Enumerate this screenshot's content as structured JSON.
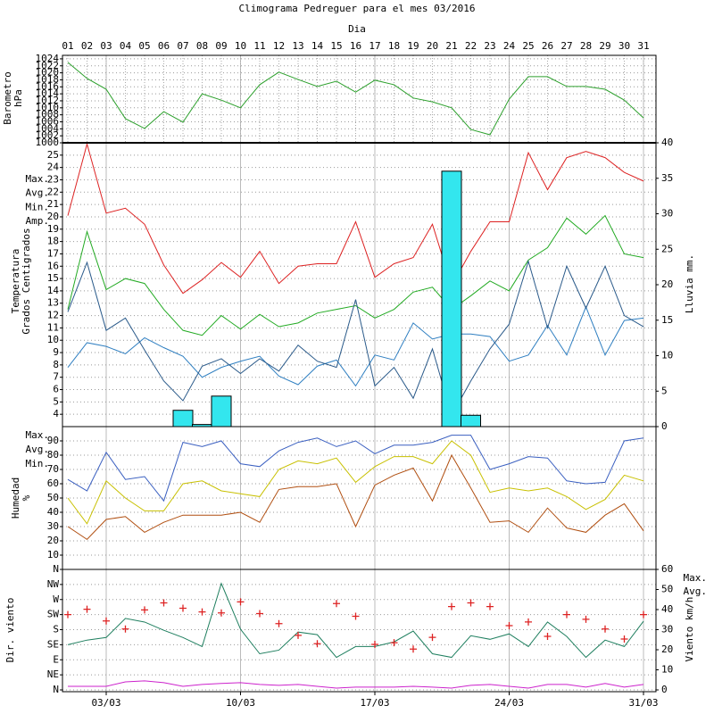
{
  "chart_data": [
    {
      "type": "line",
      "title": "Climograma Pedreguer para el mes 03/2016",
      "xlabel": "Dia",
      "ylabel": [
        "Barometro",
        "hPa"
      ],
      "ylabel_color": "#2ca02c",
      "categories": [
        "01",
        "02",
        "03",
        "04",
        "05",
        "06",
        "07",
        "08",
        "09",
        "10",
        "11",
        "12",
        "13",
        "14",
        "15",
        "16",
        "17",
        "18",
        "19",
        "20",
        "21",
        "22",
        "23",
        "24",
        "25",
        "26",
        "27",
        "28",
        "29",
        "30",
        "31"
      ],
      "ylim": [
        1000,
        1025
      ],
      "yticks": [
        1000,
        1002,
        1004,
        1006,
        1008,
        1010,
        1012,
        1014,
        1016,
        1018,
        1020,
        1022,
        1024
      ],
      "grid": true,
      "series": [
        {
          "color": "#2ca02c",
          "style": "line",
          "values": [
            1023,
            1018.4,
            1015.3,
            1006.9,
            1004.1,
            1008.9,
            1005.9,
            1014,
            1012.2,
            1010,
            1016.6,
            1020.2,
            1018.1,
            1016.1,
            1017.6,
            1014.5,
            1017.9,
            1016.6,
            1012.8,
            1011.7,
            1010,
            1003.8,
            1002.3,
            1012.5,
            1018.9,
            1018.9,
            1016.1,
            1016.1,
            1015.3,
            1012.2,
            1007.1
          ]
        }
      ]
    },
    {
      "type": "line",
      "ylabel": [
        "Temperatura",
        "Grados Centigrados"
      ],
      "ylabel_color": "#dd2222",
      "y2label": "Lluvia mm.",
      "y2label_color": "#22dddd",
      "legend": "left",
      "ylim": [
        3,
        26
      ],
      "yticks": [
        4,
        5,
        6,
        7,
        8,
        9,
        10,
        11,
        12,
        13,
        14,
        15,
        16,
        17,
        18,
        19,
        20,
        21,
        22,
        23,
        24,
        25
      ],
      "grid": true,
      "y2lim": [
        0,
        40
      ],
      "y2ticks": [
        0,
        5,
        10,
        15,
        20,
        25,
        30,
        35,
        40
      ],
      "series": [
        {
          "name": "Max.",
          "color": "#dd2222",
          "style": "line",
          "values": [
            20.1,
            25.9,
            20.3,
            20.7,
            19.4,
            16.1,
            13.8,
            14.9,
            16.3,
            15.1,
            17.2,
            14.6,
            16,
            16.2,
            16.2,
            19.6,
            15.1,
            16.2,
            16.7,
            19.4,
            14.4,
            17.2,
            19.6,
            19.6,
            25.2,
            22.2,
            24.8,
            25.3,
            24.8,
            23.6,
            22.9
          ]
        },
        {
          "name": "Avg.",
          "color": "#22aa22",
          "style": "line",
          "values": [
            12.5,
            18.8,
            14.1,
            15,
            14.6,
            12.5,
            10.8,
            10.4,
            12,
            10.9,
            12.1,
            11.1,
            11.4,
            12.2,
            12.5,
            12.8,
            11.8,
            12.5,
            13.9,
            14.3,
            12.5,
            13.6,
            14.8,
            14,
            16.5,
            17.5,
            19.9,
            18.6,
            20.1,
            17,
            16.7
          ]
        },
        {
          "name": "Min.",
          "color": "#2f7fc1",
          "style": "line",
          "values": [
            7.8,
            9.8,
            9.5,
            8.9,
            10.2,
            9.4,
            8.7,
            7,
            7.8,
            8.3,
            8.7,
            7.1,
            6.4,
            7.9,
            8.4,
            6.3,
            8.8,
            8.4,
            11.4,
            10.1,
            10.5,
            10.5,
            10.3,
            8.3,
            8.8,
            11.2,
            8.8,
            12.7,
            8.8,
            11.6,
            11.8
          ]
        },
        {
          "name": "Amp.",
          "color": "#2a5a8a",
          "style": "line",
          "values": [
            12.3,
            16.3,
            10.8,
            11.8,
            9.2,
            6.7,
            5.1,
            7.9,
            8.5,
            7.3,
            8.5,
            7.5,
            9.6,
            8.3,
            7.8,
            13.3,
            6.3,
            7.8,
            5.3,
            9.3,
            3.9,
            6.7,
            9.3,
            11.3,
            16.4,
            11,
            16,
            12.6,
            16,
            12,
            11.1
          ]
        },
        {
          "color": "#33e6ee",
          "style": "bar",
          "axis": "y2",
          "values": [
            0,
            0,
            0,
            0,
            0,
            0,
            2.3,
            0.3,
            4.3,
            0,
            0,
            0,
            0,
            0,
            0,
            0,
            0,
            0,
            0,
            0,
            36,
            1.6,
            0,
            0,
            0,
            0,
            0,
            0,
            0,
            0,
            0
          ]
        }
      ]
    },
    {
      "type": "line",
      "ylabel": [
        "Humedad",
        "%"
      ],
      "ylabel_color": "#c05a00",
      "legend": "left",
      "ylim": [
        0,
        100
      ],
      "yticks": [
        10,
        20,
        30,
        40,
        50,
        60,
        70,
        80,
        90
      ],
      "grid": true,
      "series": [
        {
          "name": "Max.",
          "color": "#3a5fc0",
          "style": "line",
          "values": [
            63,
            55,
            82,
            63,
            65,
            48,
            89,
            86,
            90,
            74,
            72,
            83,
            89,
            92,
            86,
            90,
            81,
            87,
            87,
            89,
            94,
            94,
            70,
            74,
            79,
            78,
            62,
            60,
            61,
            90,
            92
          ]
        },
        {
          "name": "Avg.",
          "color": "#c8c000",
          "style": "line",
          "values": [
            50,
            32,
            62,
            50,
            41,
            41,
            60,
            62,
            55,
            53,
            51,
            70,
            76,
            74,
            78,
            61,
            72,
            79,
            79,
            74,
            90,
            80,
            54,
            57,
            55,
            57,
            51,
            42,
            49,
            66,
            62
          ]
        },
        {
          "name": "Min.",
          "color": "#b04e10",
          "style": "line",
          "values": [
            30,
            21,
            35,
            37,
            26,
            33,
            38,
            38,
            38,
            40,
            33,
            56,
            58,
            58,
            60,
            30,
            59,
            66,
            71,
            48,
            80,
            57,
            33,
            34,
            26,
            43,
            29,
            26,
            38,
            46,
            27
          ]
        }
      ]
    },
    {
      "type": "line",
      "ylabel": [
        "Dir. viento"
      ],
      "ylabel_color": "#dd2222",
      "y2label": "Viento km/h",
      "y2label_color": "#cc22cc",
      "legend": "right",
      "categories": [
        null,
        null,
        "03/03",
        null,
        null,
        null,
        null,
        null,
        null,
        "10/03",
        null,
        null,
        null,
        null,
        null,
        null,
        "17/03",
        null,
        null,
        null,
        null,
        null,
        null,
        "24/03",
        null,
        null,
        null,
        null,
        null,
        null,
        "31/03"
      ],
      "ylim": [
        0,
        360
      ],
      "yticks": [
        {
          "value": 0,
          "label": "N"
        },
        {
          "value": 45,
          "label": "NE"
        },
        {
          "value": 90,
          "label": "E"
        },
        {
          "value": 135,
          "label": "SE"
        },
        {
          "value": 180,
          "label": "S"
        },
        {
          "value": 225,
          "label": "SW"
        },
        {
          "value": 270,
          "label": "W"
        },
        {
          "value": 315,
          "label": "NW"
        },
        {
          "value": 360,
          "label": "N"
        }
      ],
      "grid": true,
      "y2lim": [
        0,
        60
      ],
      "y2ticks": [
        0,
        10,
        20,
        30,
        40,
        50,
        60
      ],
      "series": [
        {
          "name": "Max.",
          "color": "#1f7f5f",
          "style": "line",
          "axis": "y2",
          "values": [
            22.5,
            24.8,
            26.1,
            35.6,
            33.8,
            29.7,
            26.1,
            21.6,
            53,
            30.2,
            18,
            19.8,
            28.8,
            27.5,
            16.2,
            21.6,
            21.6,
            23.9,
            29.3,
            18,
            16.2,
            27,
            25.2,
            27.9,
            21.6,
            33.8,
            26.6,
            16.2,
            24.8,
            21.6,
            34.2
          ]
        },
        {
          "name": "Avg.",
          "color": "#cc22cc",
          "style": "line",
          "axis": "y2",
          "values": [
            1.8,
            1.8,
            1.8,
            4,
            4.5,
            3.6,
            1.8,
            2.7,
            3.2,
            3.6,
            2.7,
            2.3,
            2.7,
            1.8,
            0.9,
            1.4,
            1.4,
            1.4,
            1.8,
            1.4,
            0.9,
            2.3,
            2.7,
            1.8,
            0.9,
            2.7,
            2.7,
            1.4,
            3.2,
            1.4,
            2.7
          ]
        },
        {
          "color": "#dd2222",
          "style": "cross",
          "values": [
            225,
            241,
            206,
            182,
            239,
            260,
            244,
            233,
            230,
            263,
            228,
            198,
            163,
            138,
            258,
            220,
            136,
            141,
            122,
            157,
            249,
            260,
            249,
            192,
            203,
            160,
            225,
            211,
            182,
            152,
            225
          ]
        }
      ]
    }
  ]
}
